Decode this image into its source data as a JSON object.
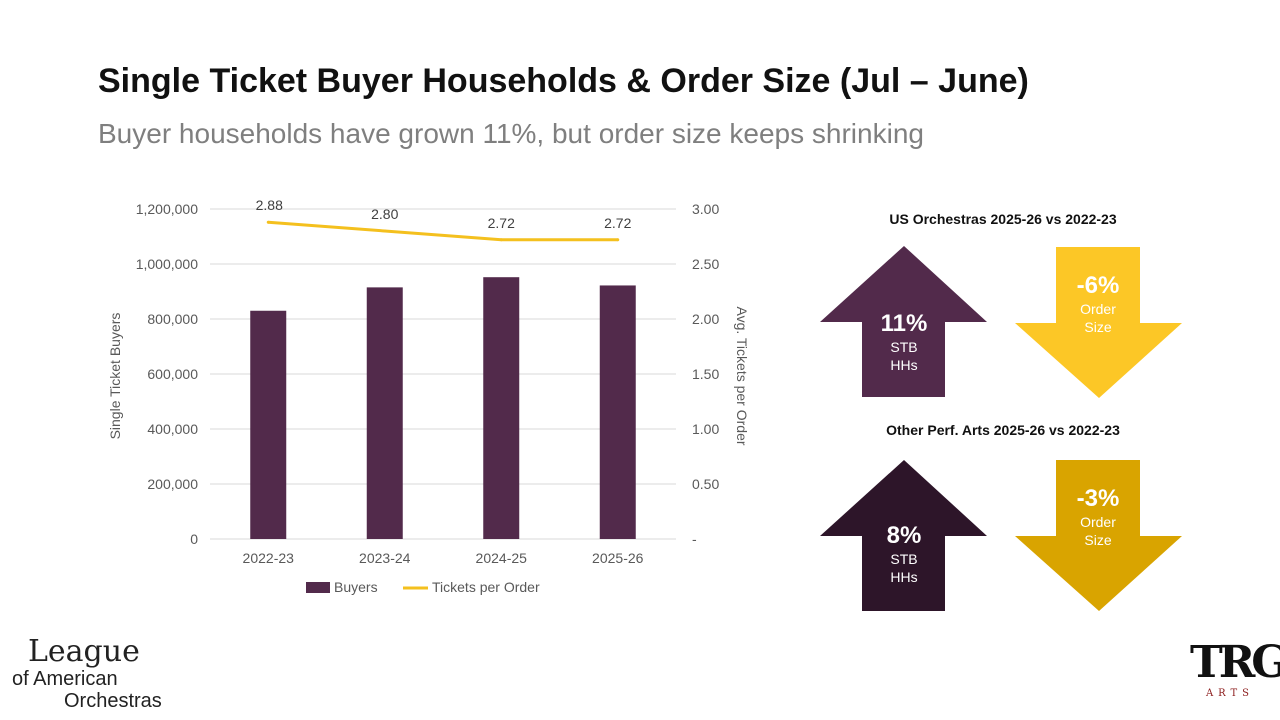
{
  "slide": {
    "title": "Single Ticket Buyer Households & Order Size (Jul – June)",
    "subtitle": "Buyer households have grown 11%, but order size keeps shrinking"
  },
  "chart_data": {
    "type": "bar",
    "categories": [
      "2022-23",
      "2023-24",
      "2024-25",
      "2025-26"
    ],
    "series": [
      {
        "name": "Buyers",
        "type": "bar",
        "axis": "left",
        "color": "#522a4b",
        "values": [
          830000,
          915000,
          952000,
          922000
        ]
      },
      {
        "name": "Tickets per Order",
        "type": "line",
        "axis": "right",
        "color": "#f4c01e",
        "values": [
          2.88,
          2.8,
          2.72,
          2.72
        ],
        "labels": [
          "2.88",
          "2.80",
          "2.72",
          "2.72"
        ]
      }
    ],
    "ylabel": "Single Ticket Buyers",
    "y2label": "Avg. Tickets per Order",
    "ylim": [
      0,
      1200000
    ],
    "y2lim": [
      0,
      3
    ],
    "yticks": [
      0,
      200000,
      400000,
      600000,
      800000,
      1000000,
      1200000
    ],
    "yticklabels": [
      "0",
      "200,000",
      "400,000",
      "600,000",
      "800,000",
      "1,000,000",
      "1,200,000"
    ],
    "y2ticklabels": [
      "-",
      "0.50",
      "1.00",
      "1.50",
      "2.00",
      "2.50",
      "3.00"
    ],
    "grid": true,
    "legend": "bottom"
  },
  "panels": {
    "us": {
      "title": "US Orchestras 2025-26 vs 2022-23",
      "up": {
        "value": "11%",
        "label1": "STB",
        "label2": "HHs",
        "color": "#522a4b"
      },
      "down": {
        "value": "-6%",
        "label1": "Order",
        "label2": "Size",
        "color": "#fcc726"
      }
    },
    "other": {
      "title": "Other Perf. Arts 2025-26 vs 2022-23",
      "up": {
        "value": "8%",
        "label1": "STB",
        "label2": "HHs",
        "color": "#2d1529"
      },
      "down": {
        "value": "-3%",
        "label1": "Order",
        "label2": "Size",
        "color": "#d9a400"
      }
    }
  },
  "logos": {
    "left": {
      "line1": "League",
      "line2": "of American",
      "line3": "Orchestras"
    },
    "right": {
      "mark": "TRG",
      "sub": "ARTS"
    }
  }
}
